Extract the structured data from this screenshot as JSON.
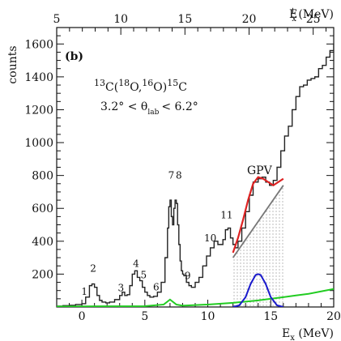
{
  "chart_data": {
    "type": "line",
    "panel_label": "(b)",
    "reaction_text": {
      "pre": "13",
      "c1": "C(",
      "sup2": "18",
      "c2": "O,",
      "sup3": "16",
      "c3": "O)",
      "sup4": "15",
      "c4": "C"
    },
    "angle_text": {
      "range_lo": "3.2° < θ",
      "sub": "lab",
      "range_hi": "< 6.2°"
    },
    "xlabel": {
      "main": "E",
      "sub": "x",
      "unit": " (MeV)"
    },
    "x2label": {
      "main": "E",
      "sup": "t",
      "sub": "x",
      "unit": " (MeV)"
    },
    "ylabel": "counts",
    "xlim": [
      -2,
      20
    ],
    "ylim": [
      0,
      1700
    ],
    "x2lim": [
      5,
      26.6
    ],
    "xticks": [
      0,
      5,
      10,
      15,
      20
    ],
    "x2ticks": [
      5,
      10,
      15,
      20,
      25
    ],
    "yticks": [
      200,
      400,
      600,
      800,
      1000,
      1200,
      1400,
      1600
    ],
    "gpv_label": "GPV",
    "peak_labels": [
      {
        "text": "1",
        "x": 0.2,
        "y": 75
      },
      {
        "text": "2",
        "x": 0.9,
        "y": 215
      },
      {
        "text": "3",
        "x": 3.1,
        "y": 95
      },
      {
        "text": "4",
        "x": 4.3,
        "y": 245
      },
      {
        "text": "5",
        "x": 4.9,
        "y": 175
      },
      {
        "text": "6",
        "x": 5.9,
        "y": 100
      },
      {
        "text": "7",
        "x": 7.1,
        "y": 780
      },
      {
        "text": "8",
        "x": 7.7,
        "y": 780
      },
      {
        "text": "9",
        "x": 8.4,
        "y": 170
      },
      {
        "text": "10",
        "x": 10.2,
        "y": 400
      },
      {
        "text": "11",
        "x": 11.5,
        "y": 540
      }
    ],
    "series": [
      {
        "color": "#222222",
        "x": [
          -2.0,
          -1.5,
          -1.0,
          -0.5,
          0.0,
          0.3,
          0.6,
          0.8,
          1.0,
          1.2,
          1.4,
          1.6,
          1.9,
          2.2,
          2.6,
          3.0,
          3.2,
          3.4,
          3.6,
          3.8,
          4.0,
          4.2,
          4.4,
          4.6,
          4.8,
          5.0,
          5.2,
          5.4,
          5.7,
          6.0,
          6.3,
          6.6,
          6.8,
          6.9,
          7.0,
          7.1,
          7.2,
          7.3,
          7.4,
          7.5,
          7.6,
          7.7,
          7.8,
          7.9,
          8.0,
          8.1,
          8.3,
          8.5,
          8.7,
          9.0,
          9.3,
          9.6,
          9.9,
          10.2,
          10.5,
          10.8,
          11.0,
          11.2,
          11.4,
          11.6,
          11.8,
          12.0,
          12.2,
          12.4,
          12.7,
          13.0,
          13.3,
          13.6,
          14.0,
          14.3,
          14.6,
          14.9,
          15.2,
          15.5,
          15.8,
          16.1,
          16.4,
          16.7,
          17.0,
          17.3,
          17.6,
          17.9,
          18.2,
          18.5,
          18.8,
          19.1,
          19.4,
          19.7,
          20.0
        ],
        "y": [
          5,
          8,
          10,
          15,
          20,
          60,
          130,
          140,
          120,
          70,
          40,
          30,
          25,
          30,
          45,
          70,
          90,
          70,
          75,
          130,
          200,
          220,
          180,
          160,
          120,
          90,
          70,
          60,
          65,
          90,
          150,
          300,
          480,
          610,
          650,
          550,
          500,
          600,
          650,
          630,
          500,
          380,
          280,
          220,
          200,
          190,
          150,
          130,
          120,
          150,
          180,
          250,
          310,
          360,
          400,
          380,
          380,
          410,
          470,
          480,
          420,
          380,
          360,
          400,
          480,
          580,
          680,
          760,
          780,
          790,
          760,
          740,
          770,
          850,
          950,
          1040,
          1100,
          1200,
          1280,
          1340,
          1350,
          1380,
          1390,
          1400,
          1450,
          1470,
          1520,
          1560,
          1600
        ]
      },
      {
        "color": "#22cc22",
        "x": [
          -2,
          5,
          6.5,
          7.0,
          7.5,
          8.0,
          10,
          12,
          14,
          15,
          16,
          17,
          18,
          19,
          20
        ],
        "y": [
          3,
          5,
          15,
          45,
          15,
          8,
          15,
          25,
          40,
          50,
          60,
          70,
          80,
          95,
          110
        ]
      },
      {
        "color": "#1a1acc",
        "x": [
          12.0,
          12.5,
          13.0,
          13.4,
          13.8,
          14.0,
          14.2,
          14.6,
          15.0,
          15.5,
          16.0
        ],
        "y": [
          0,
          10,
          60,
          140,
          195,
          200,
          195,
          140,
          60,
          10,
          0
        ]
      },
      {
        "color": "#dd2222",
        "x": [
          12.0,
          12.4,
          12.8,
          13.2,
          13.6,
          14.0,
          14.4,
          14.8,
          15.2,
          15.6,
          16.0
        ],
        "y": [
          330,
          420,
          530,
          650,
          750,
          790,
          780,
          760,
          740,
          760,
          780
        ]
      },
      {
        "color": "#777777",
        "x": [
          12.0,
          16.0
        ],
        "y": [
          300,
          740
        ]
      }
    ],
    "shaded_region": {
      "x_start": 12.0,
      "x_end": 16.0
    }
  }
}
